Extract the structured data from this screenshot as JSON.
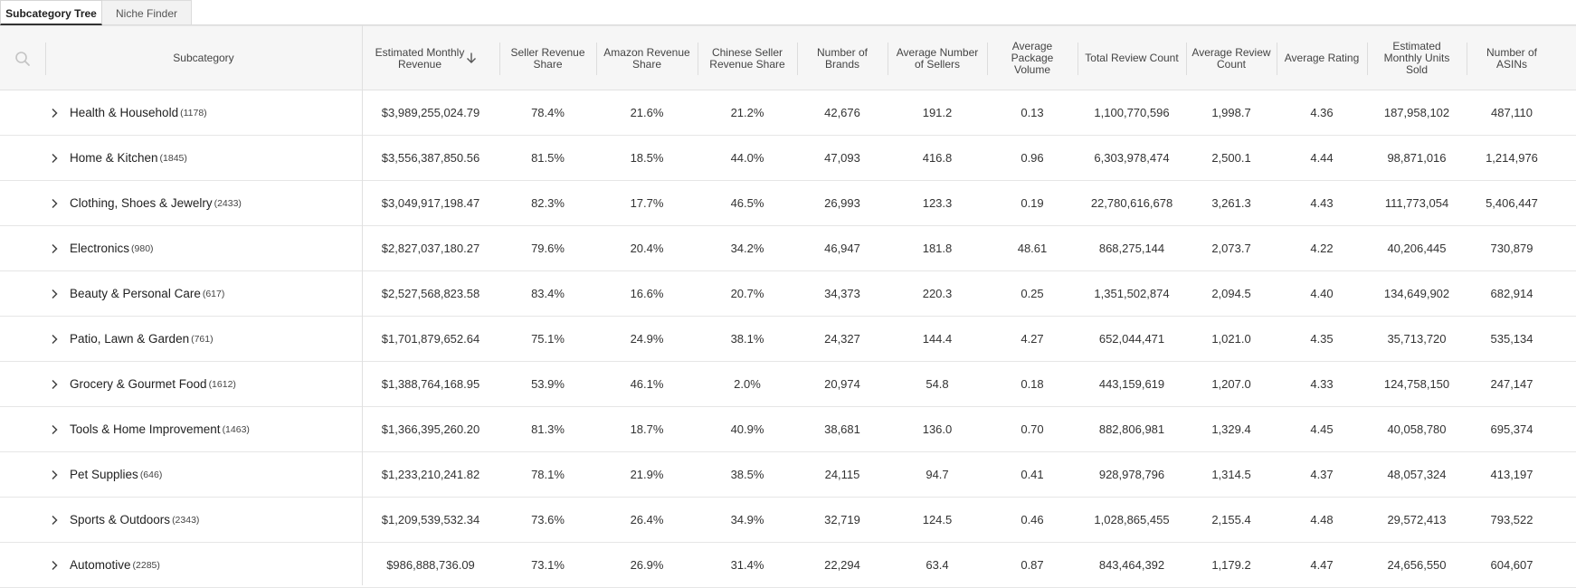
{
  "tabs": [
    {
      "label": "Subcategory Tree",
      "active": true
    },
    {
      "label": "Niche Finder",
      "active": false
    }
  ],
  "table": {
    "columns": {
      "subcategory": "Subcategory",
      "revenue": "Estimated Monthly Revenue",
      "seller_share": "Seller Revenue Share",
      "amazon_share": "Amazon Revenue Share",
      "chinese_share": "Chinese Seller Revenue Share",
      "brands": "Number of Brands",
      "sellers": "Average Number of Sellers",
      "volume": "Average Package Volume",
      "reviews": "Total Review Count",
      "avg_reviews": "Average Review Count",
      "rating": "Average Rating",
      "units": "Estimated Monthly Units Sold",
      "asins": "Number of ASINs"
    },
    "sort": {
      "column": "revenue",
      "direction": "descending",
      "icon": "arrow-down-icon"
    },
    "rows": [
      {
        "name": "Health & Household",
        "count": "(1178)",
        "revenue": "$3,989,255,024.79",
        "seller_share": "78.4%",
        "amazon_share": "21.6%",
        "chinese_share": "21.2%",
        "brands": "42,676",
        "sellers": "191.2",
        "volume": "0.13",
        "reviews": "1,100,770,596",
        "avg_reviews": "1,998.7",
        "rating": "4.36",
        "units": "187,958,102",
        "asins": "487,110"
      },
      {
        "name": "Home & Kitchen",
        "count": "(1845)",
        "revenue": "$3,556,387,850.56",
        "seller_share": "81.5%",
        "amazon_share": "18.5%",
        "chinese_share": "44.0%",
        "brands": "47,093",
        "sellers": "416.8",
        "volume": "0.96",
        "reviews": "6,303,978,474",
        "avg_reviews": "2,500.1",
        "rating": "4.44",
        "units": "98,871,016",
        "asins": "1,214,976"
      },
      {
        "name": "Clothing, Shoes & Jewelry",
        "count": "(2433)",
        "revenue": "$3,049,917,198.47",
        "seller_share": "82.3%",
        "amazon_share": "17.7%",
        "chinese_share": "46.5%",
        "brands": "26,993",
        "sellers": "123.3",
        "volume": "0.19",
        "reviews": "22,780,616,678",
        "avg_reviews": "3,261.3",
        "rating": "4.43",
        "units": "111,773,054",
        "asins": "5,406,447"
      },
      {
        "name": "Electronics",
        "count": "(980)",
        "revenue": "$2,827,037,180.27",
        "seller_share": "79.6%",
        "amazon_share": "20.4%",
        "chinese_share": "34.2%",
        "brands": "46,947",
        "sellers": "181.8",
        "volume": "48.61",
        "reviews": "868,275,144",
        "avg_reviews": "2,073.7",
        "rating": "4.22",
        "units": "40,206,445",
        "asins": "730,879"
      },
      {
        "name": "Beauty & Personal Care",
        "count": "(617)",
        "revenue": "$2,527,568,823.58",
        "seller_share": "83.4%",
        "amazon_share": "16.6%",
        "chinese_share": "20.7%",
        "brands": "34,373",
        "sellers": "220.3",
        "volume": "0.25",
        "reviews": "1,351,502,874",
        "avg_reviews": "2,094.5",
        "rating": "4.40",
        "units": "134,649,902",
        "asins": "682,914"
      },
      {
        "name": "Patio, Lawn & Garden",
        "count": "(761)",
        "revenue": "$1,701,879,652.64",
        "seller_share": "75.1%",
        "amazon_share": "24.9%",
        "chinese_share": "38.1%",
        "brands": "24,327",
        "sellers": "144.4",
        "volume": "4.27",
        "reviews": "652,044,471",
        "avg_reviews": "1,021.0",
        "rating": "4.35",
        "units": "35,713,720",
        "asins": "535,134"
      },
      {
        "name": "Grocery & Gourmet Food",
        "count": "(1612)",
        "revenue": "$1,388,764,168.95",
        "seller_share": "53.9%",
        "amazon_share": "46.1%",
        "chinese_share": "2.0%",
        "brands": "20,974",
        "sellers": "54.8",
        "volume": "0.18",
        "reviews": "443,159,619",
        "avg_reviews": "1,207.0",
        "rating": "4.33",
        "units": "124,758,150",
        "asins": "247,147"
      },
      {
        "name": "Tools & Home Improvement",
        "count": "(1463)",
        "revenue": "$1,366,395,260.20",
        "seller_share": "81.3%",
        "amazon_share": "18.7%",
        "chinese_share": "40.9%",
        "brands": "38,681",
        "sellers": "136.0",
        "volume": "0.70",
        "reviews": "882,806,981",
        "avg_reviews": "1,329.4",
        "rating": "4.45",
        "units": "40,058,780",
        "asins": "695,374"
      },
      {
        "name": "Pet Supplies",
        "count": "(646)",
        "revenue": "$1,233,210,241.82",
        "seller_share": "78.1%",
        "amazon_share": "21.9%",
        "chinese_share": "38.5%",
        "brands": "24,115",
        "sellers": "94.7",
        "volume": "0.41",
        "reviews": "928,978,796",
        "avg_reviews": "1,314.5",
        "rating": "4.37",
        "units": "48,057,324",
        "asins": "413,197"
      },
      {
        "name": "Sports & Outdoors",
        "count": "(2343)",
        "revenue": "$1,209,539,532.34",
        "seller_share": "73.6%",
        "amazon_share": "26.4%",
        "chinese_share": "34.9%",
        "brands": "32,719",
        "sellers": "124.5",
        "volume": "0.46",
        "reviews": "1,028,865,455",
        "avg_reviews": "2,155.4",
        "rating": "4.48",
        "units": "29,572,413",
        "asins": "793,522"
      },
      {
        "name": "Automotive",
        "count": "(2285)",
        "revenue": "$986,888,736.09",
        "seller_share": "73.1%",
        "amazon_share": "26.9%",
        "chinese_share": "31.4%",
        "brands": "22,294",
        "sellers": "63.4",
        "volume": "0.87",
        "reviews": "843,464,392",
        "avg_reviews": "1,179.2",
        "rating": "4.47",
        "units": "24,656,550",
        "asins": "604,607"
      }
    ]
  }
}
